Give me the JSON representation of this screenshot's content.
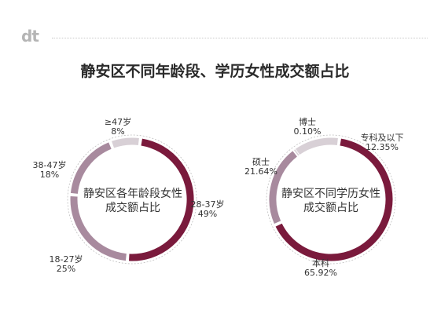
{
  "logo": "dt",
  "title": "静安区不同年龄段、学历女性成交额占比",
  "colors": {
    "dark": "#7a1a3c",
    "mid": "#a88a9e",
    "light": "#d8d0d6",
    "bg": "#ffffff"
  },
  "chart_data": [
    {
      "type": "pie",
      "title_line1": "静安区各年龄段女性",
      "title_line2": "成交额占比",
      "categories": [
        "28-37岁",
        "18-27岁",
        "38-47岁",
        "≥47岁"
      ],
      "values": [
        49,
        25,
        18,
        8
      ],
      "value_labels": [
        "49%",
        "25%",
        "18%",
        "8%"
      ]
    },
    {
      "type": "pie",
      "title_line1": "静安区不同学历女性",
      "title_line2": "成交额占比",
      "categories": [
        "本科",
        "硕士",
        "博士",
        "专科及以下"
      ],
      "values": [
        65.92,
        21.64,
        0.1,
        12.35
      ],
      "value_labels": [
        "65.92%",
        "21.64%",
        "0.10%",
        "12.35%"
      ]
    }
  ]
}
